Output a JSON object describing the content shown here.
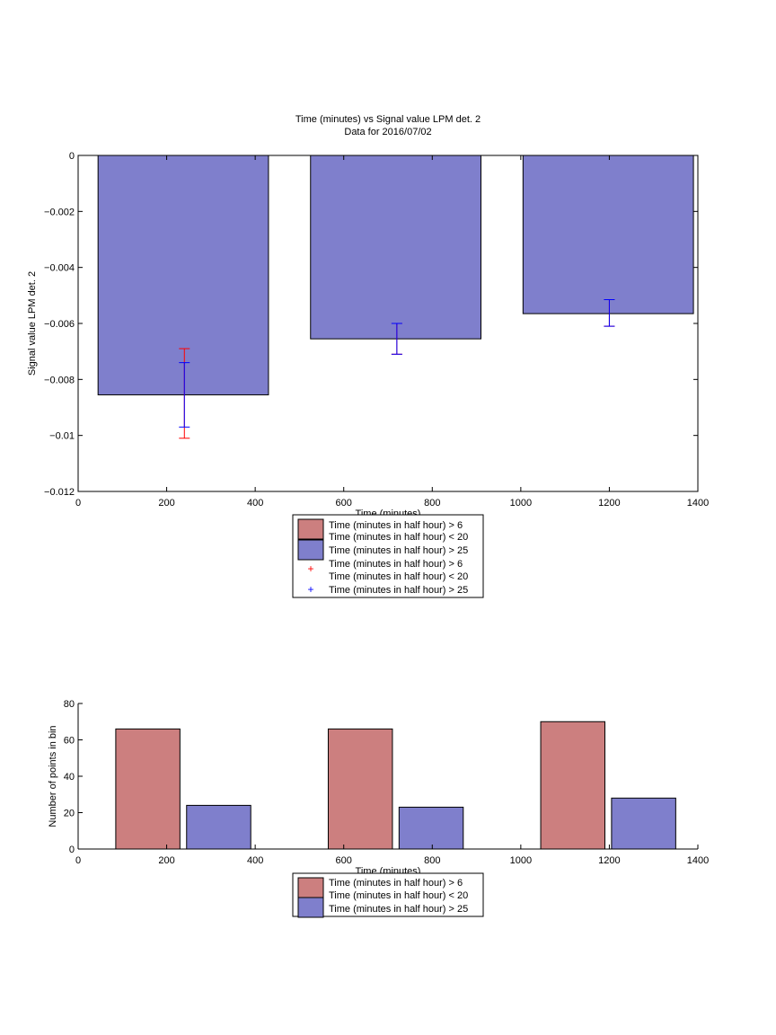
{
  "colors": {
    "red_bar": "#cc7f7f",
    "blue_bar": "#7f7fcc",
    "red_err": "#ff0000",
    "blue_err": "#0000ff",
    "axis": "#000000"
  },
  "chart_data": [
    {
      "type": "bar",
      "title": "Time (minutes) vs Signal value LPM det. 2",
      "subtitle": "Data for 2016/07/02",
      "xlabel": "Time (minutes)",
      "ylabel": "Signal value LPM det. 2",
      "xlim": [
        0,
        1400
      ],
      "ylim": [
        -0.012,
        0
      ],
      "xticks": [
        0,
        200,
        400,
        600,
        800,
        1000,
        1200,
        1400
      ],
      "xtick_labels": [
        "0",
        "200",
        "400",
        "600",
        "800",
        "1000",
        "1200",
        "1400"
      ],
      "yticks": [
        0,
        -0.002,
        -0.004,
        -0.006,
        -0.008,
        -0.01,
        -0.012
      ],
      "ytick_labels": [
        "0",
        "−0.002",
        "−0.004",
        "−0.006",
        "−0.008",
        "−0.01",
        "−0.012"
      ],
      "bars": [
        {
          "x_start": 45,
          "x_end": 430,
          "value": -0.00855
        },
        {
          "x_start": 525,
          "x_end": 910,
          "value": -0.00655
        },
        {
          "x_start": 1005,
          "x_end": 1390,
          "value": -0.00565
        }
      ],
      "error_bars": [
        {
          "series": "red",
          "points": [
            {
              "x": 240,
              "low": -0.0101,
              "high": -0.0069
            },
            {
              "x": 720,
              "low": -0.0071,
              "high": -0.006
            },
            {
              "x": 1200,
              "low": -0.0061,
              "high": -0.00515
            }
          ]
        },
        {
          "series": "blue",
          "points": [
            {
              "x": 240,
              "low": -0.0097,
              "high": -0.0074
            },
            {
              "x": 720,
              "low": -0.0071,
              "high": -0.006
            },
            {
              "x": 1200,
              "low": -0.0061,
              "high": -0.00515
            }
          ]
        }
      ],
      "legend_placement": "below",
      "legend": [
        {
          "kind": "patch",
          "color": "red_bar",
          "lines": [
            "Time (minutes in half hour) > 6",
            "Time (minutes in half hour) < 20"
          ]
        },
        {
          "kind": "patch",
          "color": "blue_bar",
          "lines": [
            "Time (minutes in half hour) > 25"
          ]
        },
        {
          "kind": "marker",
          "color": "red_err",
          "lines": [
            "Time (minutes in half hour) > 6",
            "Time (minutes in half hour) < 20"
          ]
        },
        {
          "kind": "marker",
          "color": "blue_err",
          "lines": [
            "Time (minutes in half hour) > 25"
          ]
        }
      ]
    },
    {
      "type": "bar",
      "title": "",
      "xlabel": "Time (minutes)",
      "ylabel": "Number of points in bin",
      "xlim": [
        0,
        1400
      ],
      "ylim": [
        0,
        80
      ],
      "xticks": [
        0,
        200,
        400,
        600,
        800,
        1000,
        1200,
        1400
      ],
      "xtick_labels": [
        "0",
        "200",
        "400",
        "600",
        "800",
        "1000",
        "1200",
        "1400"
      ],
      "yticks": [
        0,
        20,
        40,
        60,
        80
      ],
      "ytick_labels": [
        "0",
        "20",
        "40",
        "60",
        "80"
      ],
      "series": [
        {
          "color": "red_bar",
          "bars": [
            {
              "x_start": 85,
              "x_end": 230,
              "value": 66
            },
            {
              "x_start": 565,
              "x_end": 710,
              "value": 66
            },
            {
              "x_start": 1045,
              "x_end": 1190,
              "value": 70
            }
          ]
        },
        {
          "color": "blue_bar",
          "bars": [
            {
              "x_start": 245,
              "x_end": 390,
              "value": 24
            },
            {
              "x_start": 725,
              "x_end": 870,
              "value": 23
            },
            {
              "x_start": 1205,
              "x_end": 1350,
              "value": 28
            }
          ]
        }
      ],
      "legend_placement": "below",
      "legend": [
        {
          "kind": "patch",
          "color": "red_bar",
          "lines": [
            "Time (minutes in half hour) > 6",
            "Time (minutes in half hour) < 20"
          ]
        },
        {
          "kind": "patch",
          "color": "blue_bar",
          "lines": [
            "Time (minutes in half hour) > 25"
          ]
        }
      ]
    }
  ]
}
